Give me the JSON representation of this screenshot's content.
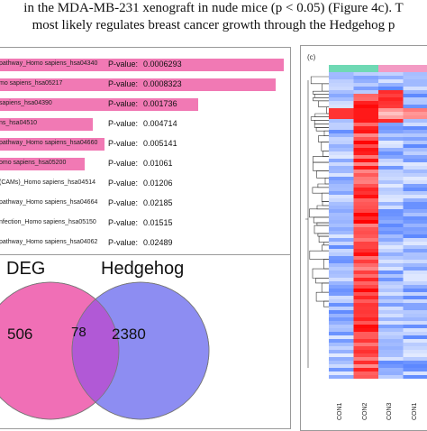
{
  "paper_text": {
    "line1": "in the MDA-MB-231 xenograft in nude mice (p < 0.05) (Figure 4c). T",
    "line2": "most likely regulates breast cancer growth through the Hedgehog p"
  },
  "panel_a": {
    "pvalue_label": "P-value:",
    "rows": [
      {
        "label": "pathway_Homo sapiens_hsa04340",
        "pvalue": "0.0006293",
        "bar_fraction": 1.0
      },
      {
        "label": "mo sapiens_hsa05217",
        "pvalue": "0.0008323",
        "bar_fraction": 0.97
      },
      {
        "label": "sapiens_hsa04390",
        "pvalue": "0.001736",
        "bar_fraction": 0.7
      },
      {
        "label": "ns_hsa04510",
        "pvalue": "0.004714",
        "bar_fraction": 0.33
      },
      {
        "label": "pathway_Homo sapiens_hsa04660",
        "pvalue": "0.005141",
        "bar_fraction": 0.37
      },
      {
        "label": "omo sapiens_hsa05200",
        "pvalue": "0.01061",
        "bar_fraction": 0.3
      },
      {
        "label": "(CAMs)_Homo sapiens_hsa04514",
        "pvalue": "0.01206",
        "bar_fraction": 0
      },
      {
        "label": "pathway_Homo sapiens_hsa04664",
        "pvalue": "0.02185",
        "bar_fraction": 0
      },
      {
        "label": "nfection_Homo sapiens_hsa05150",
        "pvalue": "0.01515",
        "bar_fraction": 0
      },
      {
        "label": "pathway_Homo sapiens_hsa04062",
        "pvalue": "0.02489",
        "bar_fraction": 0
      }
    ],
    "bar_color": "#f179b4"
  },
  "panel_b": {
    "set_a": "DEG",
    "set_b": "Hedgehog",
    "only_a": "506",
    "both": "78",
    "only_b": "2380",
    "color_a": "#f06fb6",
    "color_b": "#8d8df2",
    "color_both": "#b159d6"
  },
  "panel_c": {
    "label": "(c)",
    "columns": [
      "CON1",
      "CON2",
      "CON3",
      "CON1"
    ],
    "group_colors": [
      "#6fd9b4",
      "#f39bc4"
    ]
  }
}
